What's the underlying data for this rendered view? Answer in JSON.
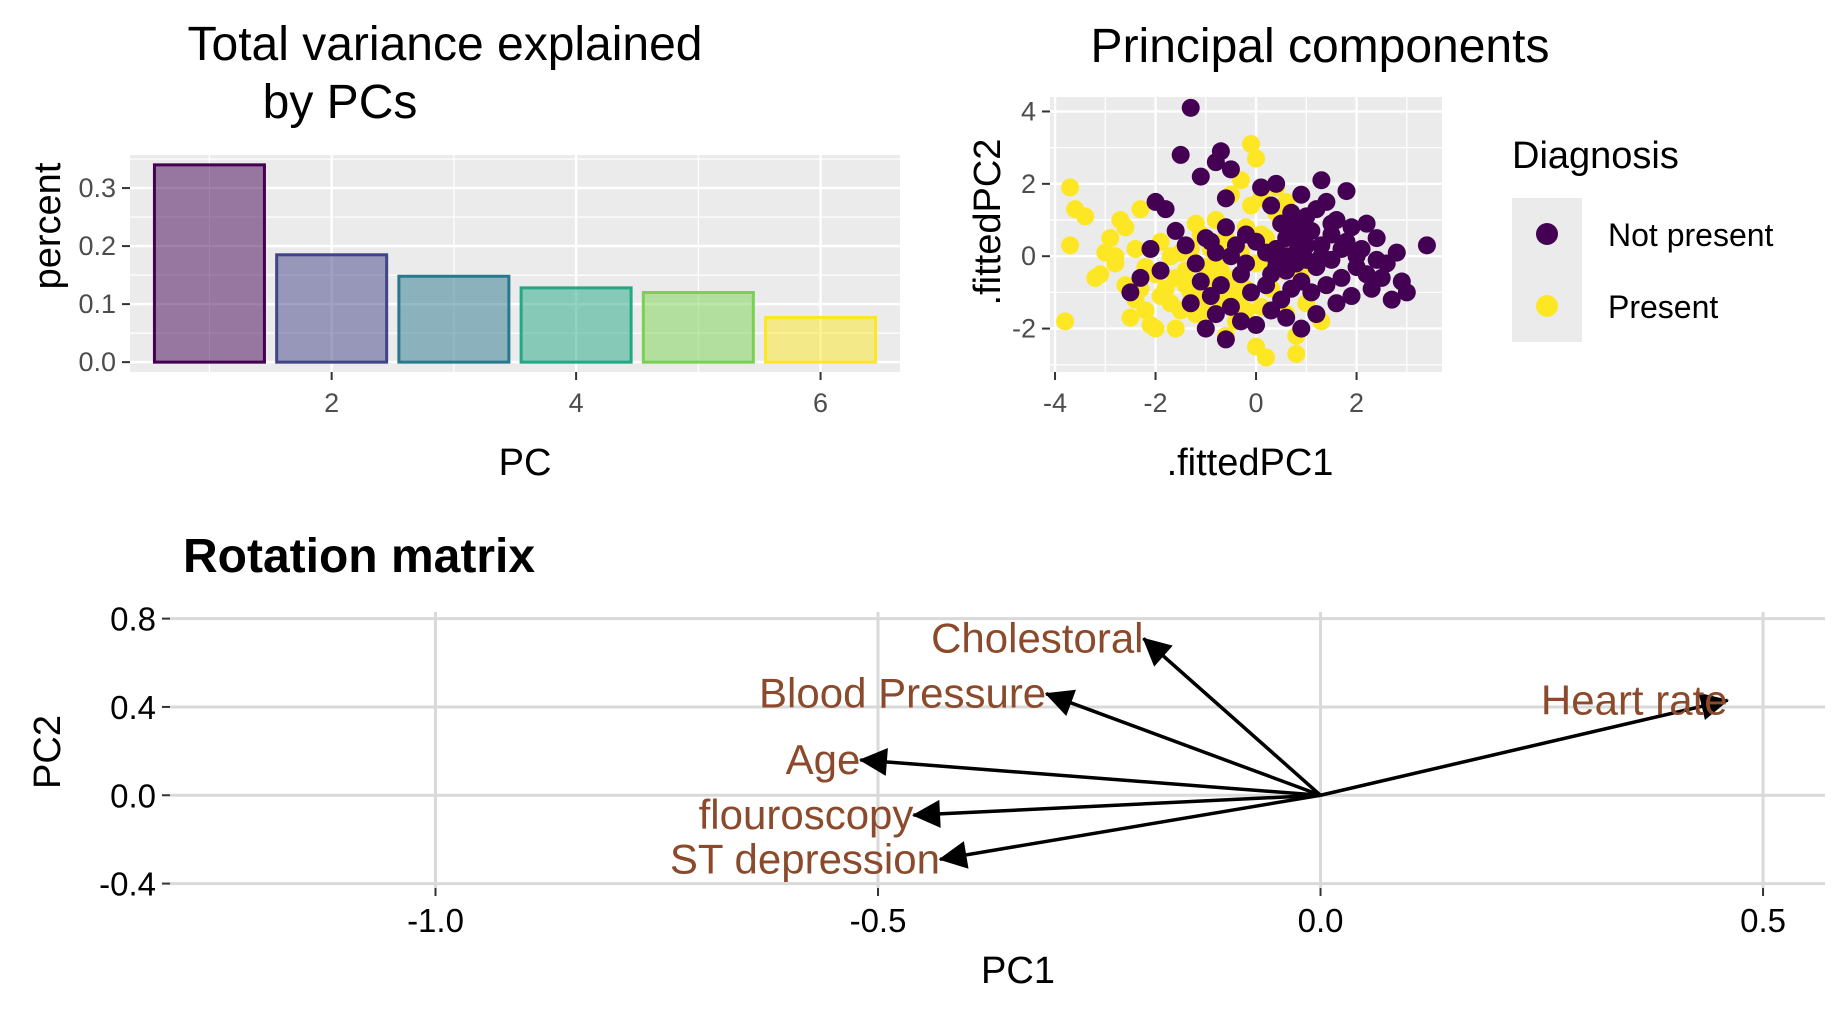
{
  "colors": {
    "panel_bg": "#EBEBEB",
    "grid": "#FFFFFF",
    "biplot_grid": "#D9D9D9",
    "not_present": "#440154",
    "present": "#FDE725",
    "arrow_label": "#8B4A2B",
    "arrow": "#000000"
  },
  "chart_data": [
    {
      "type": "bar",
      "title": "Total variance explained by PCs",
      "title_lines": [
        "Total variance explained",
        "by PCs"
      ],
      "xlabel": "PC",
      "ylabel": "percent",
      "x": [
        1,
        2,
        3,
        4,
        5,
        6
      ],
      "values": [
        0.34,
        0.185,
        0.148,
        0.128,
        0.12,
        0.077
      ],
      "bar_colors": [
        "#440154",
        "#414487",
        "#2A788E",
        "#22A884",
        "#7AD151",
        "#FDE725"
      ],
      "xticks": [
        "2",
        "4",
        "6"
      ],
      "xtick_values": [
        2,
        4,
        6
      ],
      "yticks": [
        "0.0",
        "0.1",
        "0.2",
        "0.3"
      ],
      "ytick_values": [
        0,
        0.1,
        0.2,
        0.3
      ],
      "xlim": [
        0.35,
        6.65
      ],
      "ylim": [
        -0.017,
        0.357
      ],
      "grid": true
    },
    {
      "type": "scatter",
      "title": "Principal components",
      "xlabel": ".fittedPC1",
      "ylabel": ".fittedPC2",
      "xticks": [
        "-4",
        "-2",
        "0",
        "2"
      ],
      "xtick_values": [
        -4,
        -2,
        0,
        2
      ],
      "yticks": [
        "-2",
        "0",
        "2",
        "4"
      ],
      "ytick_values": [
        -2,
        0,
        2,
        4
      ],
      "xlim": [
        -4.1,
        3.7
      ],
      "ylim": [
        -3.2,
        4.4
      ],
      "grid": true,
      "legend": {
        "title": "Diagnosis",
        "position": "right",
        "entries": [
          "Not present",
          "Present"
        ]
      },
      "series": [
        {
          "name": "Not present",
          "points": [
            [
              -1.3,
              4.1
            ],
            [
              -1.5,
              2.8
            ],
            [
              -0.7,
              2.9
            ],
            [
              -0.8,
              2.6
            ],
            [
              -1.1,
              2.2
            ],
            [
              -0.5,
              2.4
            ],
            [
              1.3,
              2.1
            ],
            [
              0.4,
              2.0
            ],
            [
              0.1,
              1.9
            ],
            [
              1.8,
              1.8
            ],
            [
              0.9,
              1.7
            ],
            [
              -2.0,
              1.5
            ],
            [
              -1.8,
              1.3
            ],
            [
              -0.6,
              1.6
            ],
            [
              0.3,
              1.4
            ],
            [
              1.4,
              1.5
            ],
            [
              0.7,
              1.2
            ],
            [
              1.0,
              1.1
            ],
            [
              1.6,
              1.0
            ],
            [
              2.2,
              0.9
            ],
            [
              0.5,
              0.9
            ],
            [
              1.9,
              0.8
            ],
            [
              3.4,
              0.3
            ],
            [
              2.8,
              0.1
            ],
            [
              2.6,
              -0.2
            ],
            [
              2.4,
              0.5
            ],
            [
              2.1,
              0.2
            ],
            [
              1.8,
              0.4
            ],
            [
              1.5,
              0.6
            ],
            [
              1.3,
              0.3
            ],
            [
              1.1,
              0.7
            ],
            [
              0.9,
              0.4
            ],
            [
              0.6,
              0.5
            ],
            [
              0.4,
              0.2
            ],
            [
              0.2,
              0.1
            ],
            [
              0.0,
              0.4
            ],
            [
              -0.2,
              0.6
            ],
            [
              -0.4,
              0.3
            ],
            [
              -0.6,
              0.8
            ],
            [
              -0.8,
              0.1
            ],
            [
              -1.0,
              0.5
            ],
            [
              -1.2,
              -0.2
            ],
            [
              -1.4,
              0.3
            ],
            [
              -1.6,
              0.7
            ],
            [
              -1.9,
              -0.4
            ],
            [
              -2.1,
              0.2
            ],
            [
              -2.3,
              -0.6
            ],
            [
              -2.5,
              -1.0
            ],
            [
              1.5,
              -0.1
            ],
            [
              1.2,
              -0.3
            ],
            [
              1.0,
              -0.1
            ],
            [
              0.8,
              -0.2
            ],
            [
              0.6,
              -0.4
            ],
            [
              0.4,
              -0.1
            ],
            [
              2.2,
              -0.5
            ],
            [
              2.0,
              -0.3
            ],
            [
              1.7,
              -0.6
            ],
            [
              1.4,
              -0.8
            ],
            [
              1.1,
              -1.0
            ],
            [
              0.9,
              -0.7
            ],
            [
              0.7,
              -0.9
            ],
            [
              0.5,
              -1.2
            ],
            [
              0.2,
              -0.8
            ],
            [
              -0.1,
              -1.0
            ],
            [
              -0.3,
              -0.5
            ],
            [
              -0.5,
              -1.4
            ],
            [
              -0.7,
              -0.8
            ],
            [
              -0.9,
              -1.1
            ],
            [
              -1.1,
              -0.7
            ],
            [
              -1.3,
              -1.3
            ],
            [
              1.6,
              -1.3
            ],
            [
              1.9,
              -1.1
            ],
            [
              2.3,
              -0.9
            ],
            [
              2.5,
              -0.6
            ],
            [
              2.9,
              -0.7
            ],
            [
              3.0,
              -1.0
            ],
            [
              2.7,
              -1.2
            ],
            [
              0.3,
              -1.5
            ],
            [
              0.6,
              -1.7
            ],
            [
              0.9,
              -2.0
            ],
            [
              1.2,
              -1.6
            ],
            [
              0.0,
              -1.9
            ],
            [
              -0.3,
              -1.8
            ],
            [
              -0.6,
              -2.3
            ],
            [
              -0.8,
              -1.6
            ],
            [
              -1.0,
              -2.0
            ],
            [
              0.4,
              -0.3
            ],
            [
              0.8,
              0.1
            ],
            [
              1.3,
              0.0
            ],
            [
              1.7,
              0.2
            ],
            [
              2.0,
              0.0
            ],
            [
              2.4,
              -0.1
            ],
            [
              1.0,
              0.3
            ],
            [
              0.6,
              0.0
            ],
            [
              0.3,
              -0.5
            ],
            [
              -0.2,
              -0.2
            ],
            [
              -0.5,
              0.0
            ],
            [
              -0.9,
              0.4
            ],
            [
              1.5,
              0.9
            ],
            [
              1.2,
              1.3
            ],
            [
              0.8,
              0.8
            ]
          ]
        },
        {
          "name": "Present",
          "points": [
            [
              -3.7,
              1.9
            ],
            [
              -3.6,
              1.3
            ],
            [
              -3.8,
              -1.8
            ],
            [
              -3.7,
              0.3
            ],
            [
              -3.0,
              0.1
            ],
            [
              -3.1,
              -0.5
            ],
            [
              -2.8,
              -0.2
            ],
            [
              -2.6,
              -0.8
            ],
            [
              -2.4,
              -1.2
            ],
            [
              -2.2,
              -1.5
            ],
            [
              -2.1,
              -1.9
            ],
            [
              -2.0,
              -0.5
            ],
            [
              -1.9,
              0.4
            ],
            [
              -1.8,
              -0.9
            ],
            [
              -1.7,
              -1.3
            ],
            [
              -1.6,
              -2.0
            ],
            [
              -1.5,
              0.1
            ],
            [
              -1.4,
              -0.4
            ],
            [
              -1.3,
              -1.0
            ],
            [
              -1.2,
              -1.6
            ],
            [
              -1.1,
              0.6
            ],
            [
              -1.0,
              -0.3
            ],
            [
              -0.9,
              -0.7
            ],
            [
              -0.8,
              1.0
            ],
            [
              -0.7,
              -1.2
            ],
            [
              -0.6,
              -2.2
            ],
            [
              -0.5,
              0.3
            ],
            [
              -0.4,
              -0.6
            ],
            [
              -0.3,
              -1.1
            ],
            [
              -0.2,
              0.8
            ],
            [
              -0.1,
              1.4
            ],
            [
              0.0,
              -0.2
            ],
            [
              0.1,
              -1.4
            ],
            [
              0.2,
              0.5
            ],
            [
              0.3,
              -0.9
            ],
            [
              0.4,
              1.2
            ],
            [
              0.5,
              -0.4
            ],
            [
              0.6,
              -1.6
            ],
            [
              0.7,
              0.2
            ],
            [
              0.8,
              -2.2
            ],
            [
              0.9,
              -0.6
            ],
            [
              1.0,
              -1.3
            ],
            [
              -0.1,
              3.1
            ],
            [
              0.0,
              2.7
            ],
            [
              -0.3,
              2.1
            ],
            [
              -0.5,
              1.7
            ],
            [
              0.1,
              1.6
            ],
            [
              0.4,
              1.9
            ],
            [
              -2.3,
              1.3
            ],
            [
              -2.6,
              0.8
            ],
            [
              -2.9,
              0.5
            ],
            [
              -2.7,
              1.0
            ],
            [
              -2.4,
              0.2
            ],
            [
              -2.2,
              -0.3
            ],
            [
              -1.9,
              -1.1
            ],
            [
              -1.6,
              -0.6
            ],
            [
              -1.3,
              0.2
            ],
            [
              -1.0,
              -1.5
            ],
            [
              -0.8,
              -0.1
            ],
            [
              -0.6,
              0.5
            ],
            [
              -0.4,
              -1.8
            ],
            [
              -0.2,
              -0.9
            ],
            [
              0.0,
              -2.5
            ],
            [
              0.2,
              -2.8
            ],
            [
              0.8,
              -2.7
            ],
            [
              -3.2,
              -0.6
            ],
            [
              -3.4,
              1.1
            ],
            [
              -2.5,
              -1.7
            ],
            [
              -2.0,
              -2.0
            ],
            [
              -1.5,
              -1.5
            ],
            [
              -1.2,
              0.9
            ],
            [
              -0.9,
              0.2
            ],
            [
              -0.7,
              -0.4
            ],
            [
              -0.3,
              0.1
            ],
            [
              0.1,
              0.6
            ],
            [
              0.5,
              0.9
            ],
            [
              0.9,
              0.3
            ],
            [
              1.1,
              -0.2
            ],
            [
              1.3,
              -1.8
            ],
            [
              -2.8,
              0.0
            ],
            [
              -2.3,
              -0.9
            ],
            [
              -1.7,
              0.0
            ],
            [
              -1.4,
              -0.8
            ],
            [
              -1.1,
              -1.2
            ],
            [
              -0.5,
              -1.0
            ],
            [
              0.3,
              -0.2
            ],
            [
              0.6,
              1.5
            ],
            [
              -0.2,
              -1.5
            ]
          ]
        }
      ]
    },
    {
      "type": "biplot",
      "title": "Rotation matrix",
      "xlabel": "PC1",
      "ylabel": "PC2",
      "xticks": [
        "-1.0",
        "-0.5",
        "0.0",
        "0.5"
      ],
      "xtick_values": [
        -1.0,
        -0.5,
        0.0,
        0.5
      ],
      "yticks": [
        "-0.4",
        "0.0",
        "0.4",
        "0.8"
      ],
      "ytick_values": [
        -0.4,
        0.0,
        0.4,
        0.8
      ],
      "xlim": [
        -1.3,
        0.57
      ],
      "ylim": [
        -0.42,
        0.83
      ],
      "grid": true,
      "arrows": [
        {
          "label": "Cholestoral",
          "x": -0.2,
          "y": 0.71
        },
        {
          "label": "Blood Pressure",
          "x": -0.31,
          "y": 0.46
        },
        {
          "label": "Age",
          "x": -0.52,
          "y": 0.16
        },
        {
          "label": "flouroscopy",
          "x": -0.46,
          "y": -0.09
        },
        {
          "label": "ST depression",
          "x": -0.43,
          "y": -0.29
        },
        {
          "label": "Heart rate",
          "x": 0.46,
          "y": 0.43
        }
      ]
    }
  ]
}
